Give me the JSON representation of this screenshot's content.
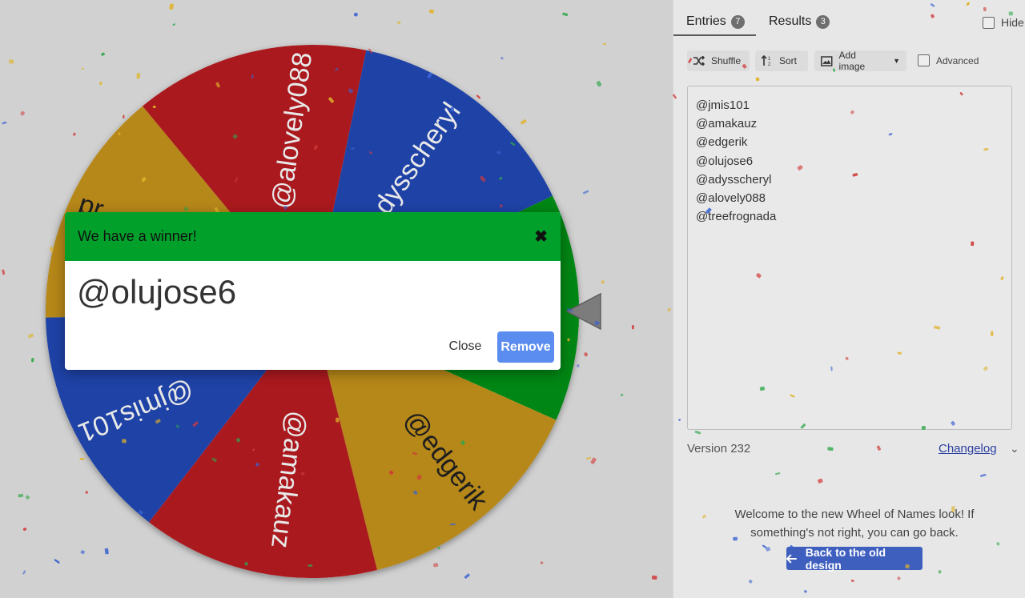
{
  "wheel": {
    "entries": [
      "@jmis101",
      "@amakauz",
      "@edgerik",
      "@olujose6",
      "@adysscheryl",
      "@alovely088",
      "@treefrognada"
    ],
    "visible_labels": [
      "@alovely088",
      "dysscheryl",
      "@jmis101",
      "@amakauz",
      "@edgerik",
      "pr"
    ],
    "segment_colors": [
      "#2249b7",
      "#bb1f24",
      "#c9951a",
      "#059415"
    ],
    "pointer_icon": "triangle-pointer-icon"
  },
  "tabs": [
    {
      "label": "Entries",
      "count": "7"
    },
    {
      "label": "Results",
      "count": "3"
    }
  ],
  "hide_label": "Hide",
  "toolbar": {
    "shuffle_label": "Shuffle",
    "sort_label": "Sort",
    "add_image_label": "Add image",
    "advanced_label": "Advanced"
  },
  "entries_text": [
    "@jmis101",
    "@amakauz",
    "@edgerik",
    "@olujose6",
    "@adysscheryl",
    "@alovely088",
    "@treefrognada"
  ],
  "version": "Version 232",
  "changelog_label": "Changelog",
  "welcome_text": "Welcome to the new Wheel of Names look! If something's not right, you can go back.",
  "old_design_label": "Back to the old design",
  "dialog": {
    "title": "We have a winner!",
    "winner": "@olujose6",
    "close_label": "Close",
    "remove_label": "Remove",
    "header_color": "#01a02b",
    "remove_color": "#5b8df0"
  }
}
